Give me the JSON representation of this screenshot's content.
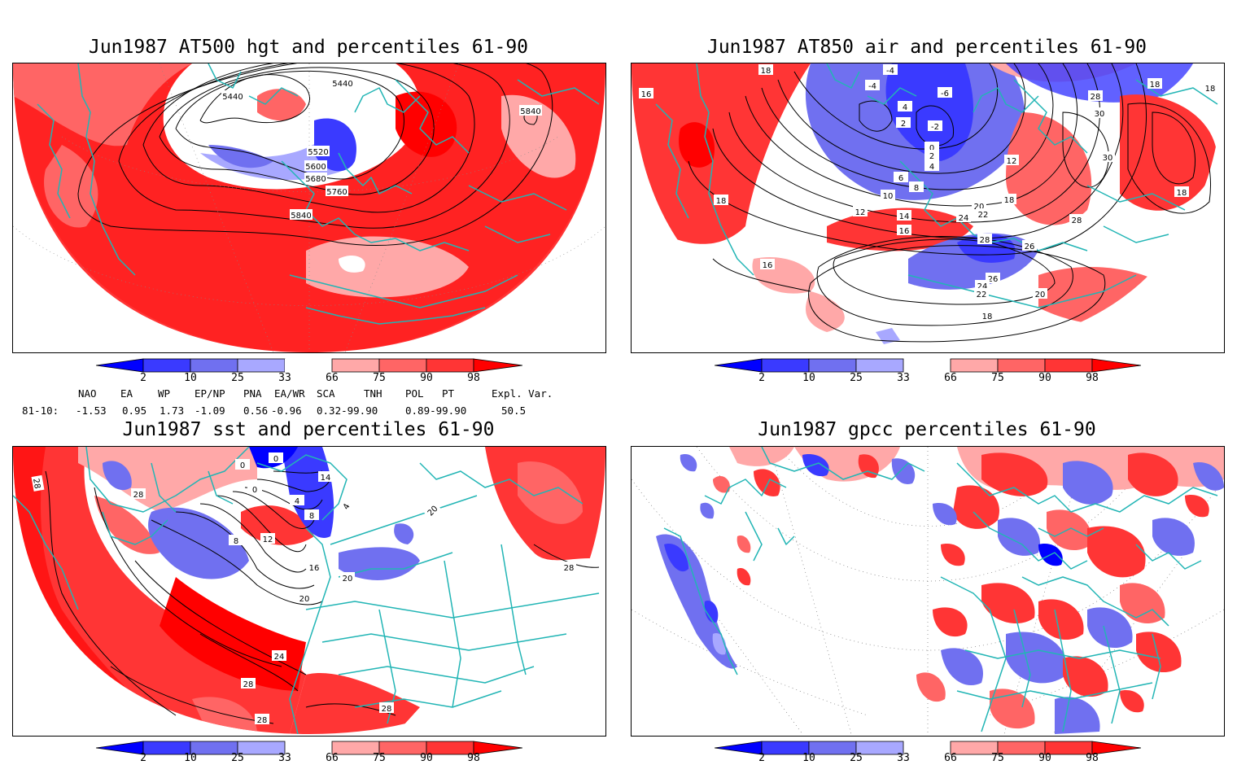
{
  "panels": {
    "tl": {
      "title": "Jun1987 AT500 hgt and percentiles 61-90",
      "contours": [
        "5440",
        "5440",
        "5840",
        "5520",
        "5600",
        "5680",
        "5760",
        "5840"
      ]
    },
    "tr": {
      "title": "Jun1987 AT850 air and percentiles 61-90",
      "contours": [
        "18",
        "16",
        "18",
        "-4",
        "-4",
        "-6",
        "4",
        "2",
        "-2",
        "0",
        "2",
        "4",
        "6",
        "8",
        "10",
        "12",
        "14",
        "16",
        "28",
        "30",
        "18",
        "30",
        "18",
        "12",
        "18",
        "20",
        "22",
        "24",
        "28",
        "26",
        "26",
        "24",
        "22",
        "20",
        "18",
        "16",
        "28",
        "18"
      ]
    },
    "bl": {
      "title": "Jun1987 sst and percentiles 61-90",
      "contours": [
        "28",
        "28",
        "0",
        "0",
        "0",
        "14",
        "4",
        "8",
        "8",
        "12",
        "16",
        "20",
        "20",
        "24",
        "28",
        "28",
        "28",
        "20",
        "28",
        "4"
      ]
    },
    "br": {
      "title": "Jun1987 gpcc percentiles 61-90"
    }
  },
  "colorbar": {
    "labels": [
      "2",
      "10",
      "25",
      "33",
      "66",
      "75",
      "90",
      "98"
    ],
    "colors": {
      "blue_extreme": "#0000ff",
      "blue_1": "#3a3aff",
      "blue_2": "#7070f0",
      "blue_3": "#a8a8ff",
      "red_3": "#ffa8a8",
      "red_2": "#ff6565",
      "red_1": "#ff3535",
      "red_extreme": "#ff0000"
    }
  },
  "indices": {
    "headers": [
      "NAO",
      "EA",
      "WP",
      "EP/NP",
      "PNA",
      "EA/WR",
      "SCA",
      "TNH",
      "POL",
      "PT",
      "Expl. Var."
    ],
    "row_label": "81-10:",
    "values": [
      "-1.53",
      "0.95",
      "1.73",
      "-1.09",
      "0.56",
      "-0.96",
      "0.32-99.90",
      "0.89-99.90",
      "50.5"
    ]
  },
  "colors": {
    "coast": "#22b5b5",
    "frame": "#000000"
  }
}
